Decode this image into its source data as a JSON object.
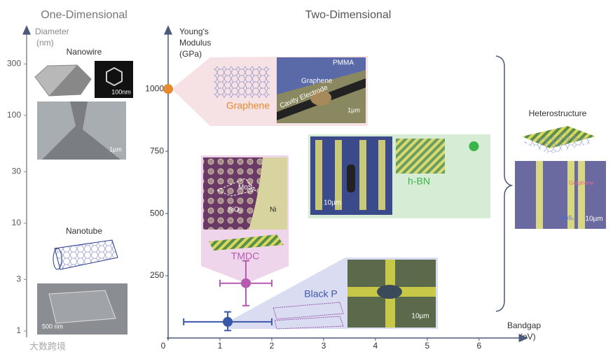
{
  "chart_data": [
    {
      "type": "log-axis",
      "title": "One-Dimensional",
      "y_label": [
        "Diameter",
        "(nm)"
      ],
      "log_y": true,
      "ylim": [
        0.9,
        600
      ],
      "yticks": [
        1,
        3,
        10,
        30,
        100,
        300
      ]
    },
    {
      "type": "scatter",
      "title": "Two-Dimensional",
      "y_label": [
        "Young's",
        "Modulus",
        "(GPa)"
      ],
      "x_label": [
        "Bandgap",
        "(eV)"
      ],
      "xlim": [
        0,
        6.8
      ],
      "ylim": [
        0,
        1200
      ],
      "xticks": [
        0,
        1,
        2,
        3,
        4,
        5,
        6
      ],
      "yticks": [
        250,
        500,
        750,
        1000
      ],
      "series": [
        {
          "name": "Graphene",
          "color": "#e58a2e",
          "x": [
            0
          ],
          "values": [
            1000
          ]
        },
        {
          "name": "h-BN",
          "color": "#3bb54a",
          "x": [
            5.9
          ],
          "values": [
            770
          ]
        },
        {
          "name": "TMDC",
          "color": "#b55ab0",
          "x": [
            1.5
          ],
          "values": [
            220
          ],
          "x_low": [
            1.0
          ],
          "x_high": [
            2.0
          ],
          "y_low": [
            130
          ],
          "y_high": [
            310
          ]
        },
        {
          "name": "Black P",
          "color": "#3a58a8",
          "x": [
            1.15
          ],
          "values": [
            65
          ],
          "x_low": [
            0.3
          ],
          "x_high": [
            2.0
          ],
          "y_low": [
            30
          ],
          "y_high": [
            105
          ]
        }
      ]
    }
  ],
  "panels": {
    "nanowire": {
      "title": "Nanowire",
      "scale_bars": [
        "100nm",
        "1µm"
      ]
    },
    "nanotube": {
      "title": "Nanotube",
      "scale_bar": "500 nm"
    },
    "graphene": {
      "labels": [
        "PMMA",
        "Graphene",
        "Cavity Electrode"
      ],
      "scale_bar": "1µm"
    },
    "hbn": {
      "scale_bar": "10µm"
    },
    "tmdc": {
      "labels": [
        "MoS₂",
        "SiO₂",
        "Ni"
      ]
    },
    "black_p": {
      "scale_bar": "10µm"
    },
    "heterostructure": {
      "title": "Heterostructure",
      "labels": [
        "Graphene",
        "MoS₂"
      ],
      "scale_bar": "10µm"
    }
  },
  "watermark": "大数跨境"
}
